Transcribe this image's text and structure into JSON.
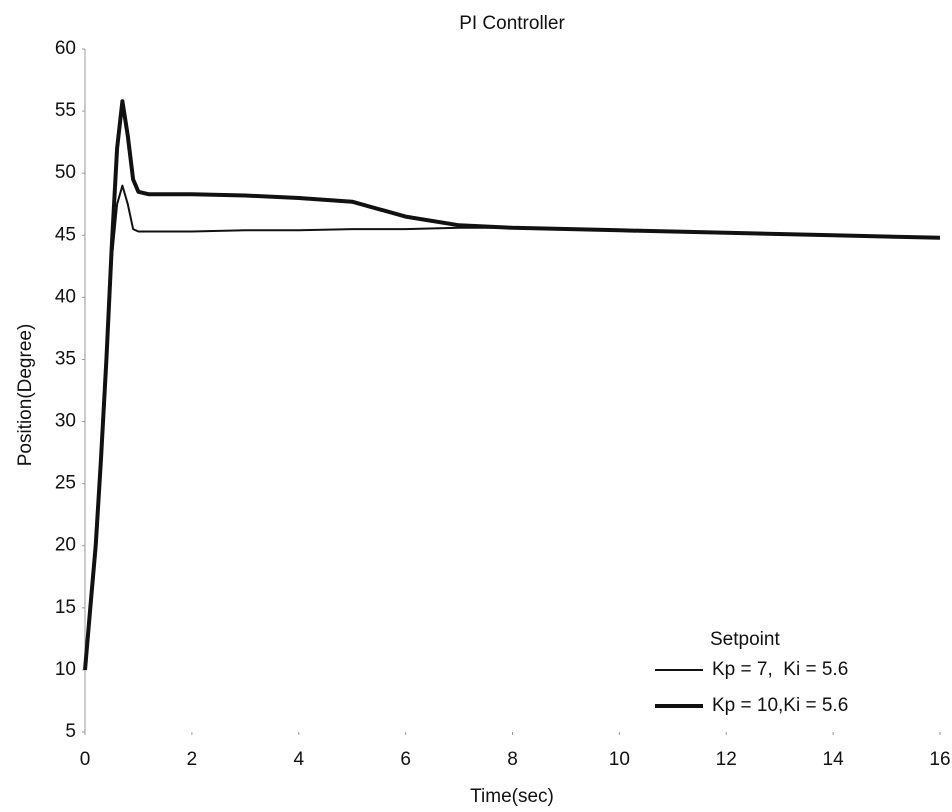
{
  "chart_data": {
    "type": "line",
    "title": "PI Controller",
    "x_label": "Time(sec)",
    "y_label": "Position(Degree)",
    "x": [
      0,
      0.1,
      0.2,
      0.3,
      0.4,
      0.5,
      0.6,
      0.7,
      0.8,
      0.9,
      1,
      1.2,
      2,
      3,
      4,
      5,
      6,
      7,
      8,
      10,
      12,
      14,
      16
    ],
    "series": [
      {
        "name": "Kp = 7,  Ki = 5.6",
        "color": "#111111",
        "values": [
          10,
          15,
          20,
          27,
          35,
          43,
          47.5,
          49,
          47.5,
          45.5,
          45.3,
          45.3,
          45.3,
          45.4,
          45.4,
          45.5,
          45.5,
          45.6,
          45.6,
          45.4,
          45.2,
          45,
          44.8
        ]
      },
      {
        "name": "Kp = 10,Ki = 5.6",
        "color": "#111111",
        "values": [
          10,
          15,
          20,
          27,
          35,
          44,
          52,
          55.8,
          53,
          49.5,
          48.5,
          48.3,
          48.3,
          48.2,
          48,
          47.7,
          46.5,
          45.8,
          45.6,
          45.4,
          45.2,
          45,
          44.8
        ]
      }
    ],
    "legend_title": "Setpoint",
    "legend": "lower right",
    "grid": false,
    "xlim": [
      0,
      16
    ],
    "ylim": [
      5,
      60
    ],
    "xticks": [
      0,
      2,
      4,
      6,
      8,
      10,
      12,
      14,
      16
    ],
    "yticks": [
      5,
      10,
      15,
      20,
      25,
      30,
      35,
      40,
      45,
      50,
      55,
      60
    ]
  }
}
